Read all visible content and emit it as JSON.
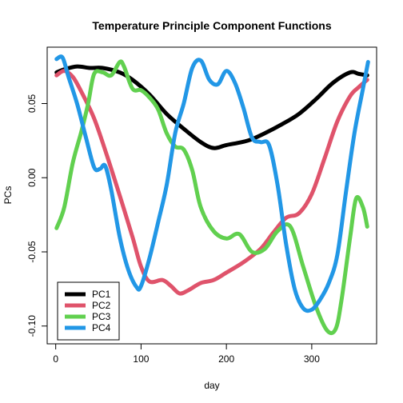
{
  "chart_data": {
    "type": "line",
    "title": "Temperature Principle Component Functions",
    "xlabel": "day",
    "ylabel": "PCs",
    "xlim": [
      -10,
      376
    ],
    "ylim": [
      -0.112,
      0.088
    ],
    "x_ticks": [
      0,
      100,
      200,
      300
    ],
    "y_ticks": [
      -0.1,
      -0.05,
      0.0,
      0.05
    ],
    "y_tick_labels": [
      "-0.10",
      "-0.05",
      "0.00",
      "0.05"
    ],
    "legend_position": "bottom-left",
    "grid": false,
    "series": [
      {
        "name": "PC1",
        "color": "#000000",
        "x": [
          1,
          10,
          25,
          40,
          55,
          75,
          90,
          110,
          130,
          150,
          170,
          185,
          200,
          225,
          245,
          265,
          285,
          305,
          325,
          345,
          355,
          365
        ],
        "y": [
          0.071,
          0.073,
          0.075,
          0.074,
          0.074,
          0.071,
          0.066,
          0.056,
          0.043,
          0.033,
          0.024,
          0.02,
          0.022,
          0.025,
          0.03,
          0.036,
          0.043,
          0.053,
          0.064,
          0.071,
          0.07,
          0.069
        ]
      },
      {
        "name": "PC2",
        "color": "#DF536B",
        "x": [
          1,
          10,
          20,
          30,
          45,
          60,
          75,
          90,
          100,
          110,
          125,
          135,
          145,
          155,
          170,
          185,
          200,
          220,
          240,
          255,
          270,
          285,
          300,
          315,
          330,
          345,
          355,
          365
        ],
        "y": [
          0.069,
          0.072,
          0.068,
          0.058,
          0.04,
          0.015,
          -0.012,
          -0.04,
          -0.06,
          -0.07,
          -0.069,
          -0.073,
          -0.078,
          -0.076,
          -0.071,
          -0.069,
          -0.064,
          -0.057,
          -0.048,
          -0.037,
          -0.027,
          -0.024,
          -0.011,
          0.013,
          0.038,
          0.055,
          0.061,
          0.066
        ]
      },
      {
        "name": "PC3",
        "color": "#61D04F",
        "x": [
          1,
          10,
          20,
          30,
          38,
          45,
          55,
          65,
          75,
          80,
          90,
          100,
          110,
          120,
          130,
          140,
          150,
          160,
          170,
          185,
          200,
          215,
          230,
          245,
          260,
          275,
          290,
          305,
          318,
          328,
          335,
          345,
          352,
          360,
          365
        ],
        "y": [
          -0.034,
          -0.02,
          0.01,
          0.031,
          0.05,
          0.07,
          0.071,
          0.069,
          0.078,
          0.075,
          0.06,
          0.059,
          0.054,
          0.046,
          0.03,
          0.021,
          0.019,
          0.005,
          -0.02,
          -0.036,
          -0.041,
          -0.038,
          -0.05,
          -0.048,
          -0.036,
          -0.033,
          -0.06,
          -0.087,
          -0.103,
          -0.102,
          -0.082,
          -0.04,
          -0.014,
          -0.02,
          -0.033
        ]
      },
      {
        "name": "PC4",
        "color": "#2297E6",
        "x": [
          1,
          8,
          15,
          25,
          35,
          45,
          52,
          58,
          65,
          75,
          85,
          95,
          100,
          110,
          120,
          130,
          140,
          150,
          160,
          170,
          180,
          190,
          200,
          210,
          220,
          230,
          240,
          250,
          260,
          270,
          280,
          290,
          300,
          310,
          320,
          330,
          340,
          350,
          360,
          366
        ],
        "y": [
          0.08,
          0.081,
          0.068,
          0.05,
          0.028,
          0.007,
          0.006,
          0.008,
          -0.008,
          -0.04,
          -0.062,
          -0.074,
          -0.073,
          -0.054,
          -0.03,
          -0.005,
          0.03,
          0.05,
          0.074,
          0.079,
          0.066,
          0.063,
          0.072,
          0.064,
          0.047,
          0.027,
          0.024,
          0.022,
          -0.005,
          -0.045,
          -0.075,
          -0.088,
          -0.089,
          -0.082,
          -0.071,
          -0.052,
          -0.01,
          0.03,
          0.06,
          0.078
        ]
      }
    ]
  }
}
